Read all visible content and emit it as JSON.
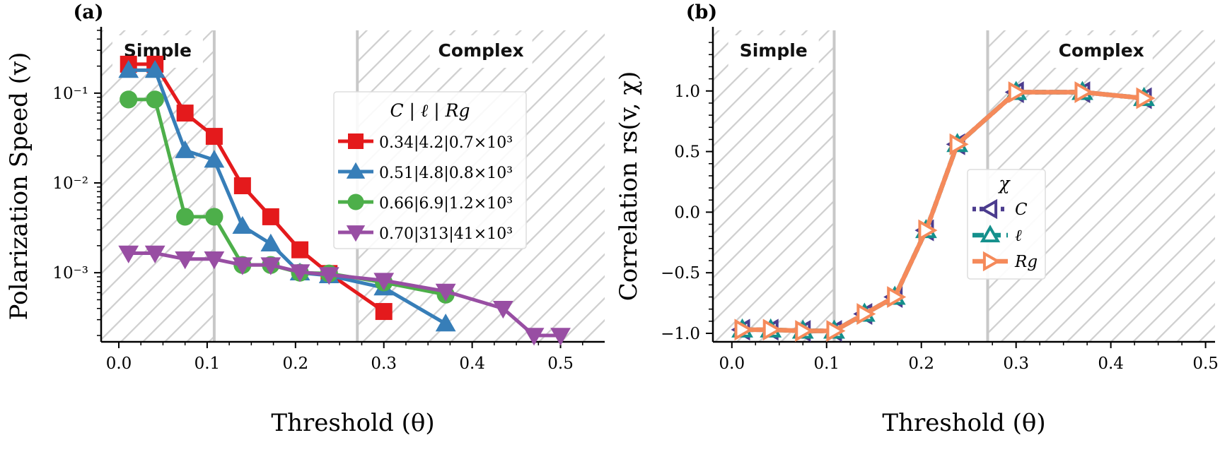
{
  "chart_data": [
    {
      "panel_label": "(a)",
      "type": "line",
      "yscale": "log",
      "xlabel": "Threshold (θ)",
      "ylabel": "Polarization Speed (v)",
      "xlim": [
        -0.02,
        0.55
      ],
      "ylim": [
        0.00017,
        0.5
      ],
      "xticks": [
        0.0,
        0.1,
        0.2,
        0.3,
        0.4,
        0.5
      ],
      "xtick_labels": [
        "0.0",
        "0.1",
        "0.2",
        "0.3",
        "0.4",
        "0.5"
      ],
      "yticks": [
        0.001,
        0.01,
        0.1
      ],
      "ytick_labels": [
        "10⁻³",
        "10⁻²",
        "10⁻¹"
      ],
      "regions": [
        {
          "label": "Simple",
          "from": -0.02,
          "to": 0.108
        },
        {
          "label": "Complex",
          "from": 0.27,
          "to": 0.55
        }
      ],
      "legend_title": "C | ℓ | Rg",
      "series": [
        {
          "name": "0.34|4.2|0.7×10³",
          "color": "#e41a1c",
          "marker": "square",
          "x": [
            0.011,
            0.041,
            0.075,
            0.108,
            0.14,
            0.172,
            0.205,
            0.238,
            0.3
          ],
          "y": [
            0.21,
            0.21,
            0.06,
            0.033,
            0.0093,
            0.0042,
            0.0018,
            0.00098,
            0.00037
          ]
        },
        {
          "name": "0.51|4.8|0.8×10³",
          "color": "#377eb8",
          "marker": "triangle-up",
          "x": [
            0.011,
            0.041,
            0.075,
            0.108,
            0.14,
            0.172,
            0.205,
            0.238,
            0.3,
            0.37
          ],
          "y": [
            0.18,
            0.18,
            0.023,
            0.018,
            0.0033,
            0.0021,
            0.001,
            0.00093,
            0.00068,
            0.00027
          ]
        },
        {
          "name": "0.66|6.9|1.2×10³",
          "color": "#4daf4a",
          "marker": "circle",
          "x": [
            0.011,
            0.041,
            0.075,
            0.108,
            0.14,
            0.172,
            0.205,
            0.238,
            0.3,
            0.37
          ],
          "y": [
            0.085,
            0.085,
            0.0042,
            0.0042,
            0.00122,
            0.00122,
            0.001,
            0.00098,
            0.00078,
            0.00057
          ]
        },
        {
          "name": "0.70|313|41×10³",
          "color": "#984ea3",
          "marker": "triangle-down",
          "x": [
            0.011,
            0.041,
            0.075,
            0.108,
            0.14,
            0.172,
            0.205,
            0.238,
            0.3,
            0.37,
            0.435,
            0.47,
            0.5
          ],
          "y": [
            0.00165,
            0.00165,
            0.00142,
            0.00142,
            0.00122,
            0.00122,
            0.00102,
            0.00095,
            0.00082,
            0.00062,
            0.0004,
            0.0002,
            0.0002
          ]
        }
      ]
    },
    {
      "panel_label": "(b)",
      "type": "line",
      "xlabel": "Threshold (θ)",
      "ylabel": "Correlation rs(v, χ)",
      "xlim": [
        -0.02,
        0.51
      ],
      "ylim": [
        -1.07,
        1.5
      ],
      "xticks": [
        0.0,
        0.1,
        0.2,
        0.3,
        0.4,
        0.5
      ],
      "xtick_labels": [
        "0.0",
        "0.1",
        "0.2",
        "0.3",
        "0.4",
        "0.5"
      ],
      "yticks": [
        -1.0,
        -0.5,
        0.0,
        0.5,
        1.0
      ],
      "ytick_labels": [
        "−1.0",
        "−0.5",
        "0.0",
        "0.5",
        "1.0"
      ],
      "regions": [
        {
          "label": "Simple",
          "from": -0.02,
          "to": 0.108
        },
        {
          "label": "Complex",
          "from": 0.27,
          "to": 0.51
        }
      ],
      "legend_title": "χ",
      "series": [
        {
          "name": "C",
          "color": "#4b3c8e",
          "marker": "triangle-left",
          "dash": "dotted",
          "x": [
            0.011,
            0.041,
            0.075,
            0.108,
            0.14,
            0.172,
            0.205,
            0.238,
            0.3,
            0.37,
            0.435
          ],
          "y": [
            -0.97,
            -0.97,
            -0.98,
            -0.98,
            -0.84,
            -0.7,
            -0.15,
            0.56,
            0.99,
            0.99,
            0.94
          ]
        },
        {
          "name": "ℓ",
          "color": "#14908c",
          "marker": "triangle-up",
          "dash": "dashed",
          "x": [
            0.011,
            0.041,
            0.075,
            0.108,
            0.14,
            0.172,
            0.205,
            0.238,
            0.3,
            0.37,
            0.435
          ],
          "y": [
            -0.97,
            -0.97,
            -0.98,
            -0.98,
            -0.84,
            -0.7,
            -0.15,
            0.56,
            0.99,
            0.99,
            0.94
          ]
        },
        {
          "name": "Rg",
          "color": "#f58a5a",
          "marker": "triangle-right",
          "dash": "solid",
          "x": [
            0.011,
            0.041,
            0.075,
            0.108,
            0.14,
            0.172,
            0.205,
            0.238,
            0.3,
            0.37,
            0.435
          ],
          "y": [
            -0.97,
            -0.97,
            -0.98,
            -0.98,
            -0.84,
            -0.7,
            -0.15,
            0.56,
            0.99,
            0.99,
            0.94
          ]
        }
      ]
    }
  ]
}
